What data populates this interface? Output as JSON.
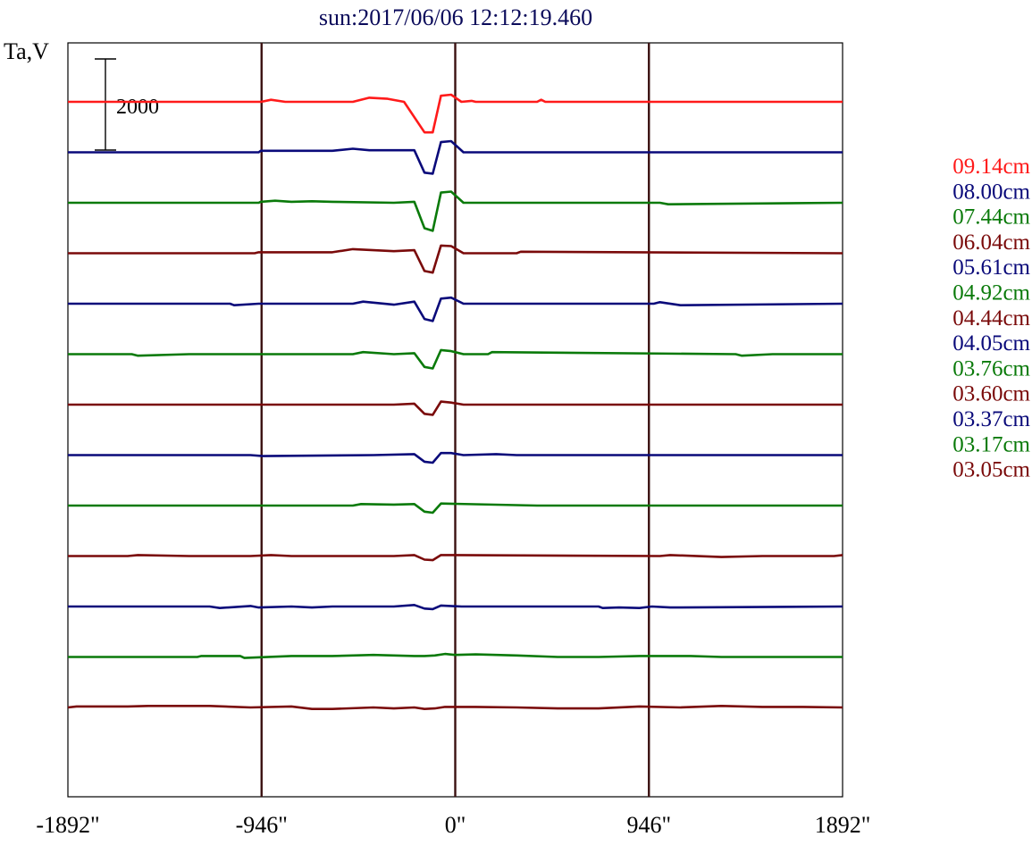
{
  "chart_data": {
    "type": "line",
    "title": "sun:2017/06/06 12:12:19.460",
    "ylabel": "Ta,V",
    "scale_bar_label": "2000",
    "scale_bar_value": 2000,
    "xlim": [
      -1892,
      1892
    ],
    "x_ticks": [
      {
        "value": -1892,
        "label": "-1892\""
      },
      {
        "value": -946,
        "label": "-946\""
      },
      {
        "value": 0,
        "label": "0\""
      },
      {
        "value": 946,
        "label": "946\""
      },
      {
        "value": 1892,
        "label": "1892\""
      }
    ],
    "limb_lines": [
      -946,
      0,
      946
    ],
    "grid": false,
    "legend_position": "right",
    "colors": {
      "red": "#ff1a1a",
      "blue": "#0a0a7a",
      "green": "#0a7a0a",
      "maroon": "#7a0a0a",
      "axis": "#000000",
      "vertical_line": "#3a1010"
    },
    "series": [
      {
        "name": "09.14cm",
        "color": "#ff1a1a",
        "points": [
          [
            -1892,
            0
          ],
          [
            -948,
            0
          ],
          [
            -900,
            40
          ],
          [
            -830,
            0
          ],
          [
            -500,
            0
          ],
          [
            -420,
            80
          ],
          [
            -330,
            60
          ],
          [
            -250,
            0
          ],
          [
            -150,
            -600
          ],
          [
            -110,
            -600
          ],
          [
            -70,
            120
          ],
          [
            -20,
            140
          ],
          [
            30,
            0
          ],
          [
            80,
            20
          ],
          [
            100,
            0
          ],
          [
            400,
            0
          ],
          [
            420,
            40
          ],
          [
            440,
            0
          ],
          [
            1892,
            0
          ]
        ]
      },
      {
        "name": "08.00cm",
        "color": "#0a0a7a",
        "points": [
          [
            -1892,
            0
          ],
          [
            -960,
            0
          ],
          [
            -950,
            30
          ],
          [
            -600,
            30
          ],
          [
            -500,
            70
          ],
          [
            -420,
            40
          ],
          [
            -200,
            40
          ],
          [
            -150,
            -400
          ],
          [
            -110,
            -420
          ],
          [
            -70,
            200
          ],
          [
            -20,
            220
          ],
          [
            40,
            0
          ],
          [
            960,
            0
          ],
          [
            970,
            0
          ],
          [
            1892,
            0
          ]
        ]
      },
      {
        "name": "07.44cm",
        "color": "#0a7a0a",
        "points": [
          [
            -1892,
            0
          ],
          [
            -960,
            0
          ],
          [
            -950,
            20
          ],
          [
            -880,
            40
          ],
          [
            -800,
            20
          ],
          [
            -700,
            30
          ],
          [
            -600,
            20
          ],
          [
            -300,
            0
          ],
          [
            -200,
            20
          ],
          [
            -150,
            -500
          ],
          [
            -110,
            -550
          ],
          [
            -70,
            200
          ],
          [
            -20,
            220
          ],
          [
            40,
            0
          ],
          [
            1000,
            0
          ],
          [
            1040,
            -30
          ],
          [
            1892,
            0
          ]
        ]
      },
      {
        "name": "06.04cm",
        "color": "#7a0a0a",
        "points": [
          [
            -1892,
            0
          ],
          [
            -980,
            0
          ],
          [
            -960,
            20
          ],
          [
            -600,
            20
          ],
          [
            -500,
            80
          ],
          [
            -300,
            40
          ],
          [
            -200,
            60
          ],
          [
            -150,
            -350
          ],
          [
            -110,
            -380
          ],
          [
            -70,
            150
          ],
          [
            -20,
            140
          ],
          [
            40,
            0
          ],
          [
            300,
            0
          ],
          [
            320,
            30
          ],
          [
            1892,
            0
          ]
        ]
      },
      {
        "name": "05.61cm",
        "color": "#0a0a7a",
        "points": [
          [
            -1892,
            0
          ],
          [
            -1100,
            0
          ],
          [
            -1080,
            -30
          ],
          [
            -960,
            0
          ],
          [
            -500,
            0
          ],
          [
            -450,
            40
          ],
          [
            -300,
            -20
          ],
          [
            -200,
            40
          ],
          [
            -150,
            -300
          ],
          [
            -110,
            -340
          ],
          [
            -70,
            100
          ],
          [
            -20,
            120
          ],
          [
            40,
            0
          ],
          [
            970,
            0
          ],
          [
            1000,
            30
          ],
          [
            1100,
            -30
          ],
          [
            1892,
            0
          ]
        ]
      },
      {
        "name": "04.92cm",
        "color": "#0a7a0a",
        "points": [
          [
            -1892,
            0
          ],
          [
            -1580,
            0
          ],
          [
            -1550,
            -30
          ],
          [
            -1300,
            0
          ],
          [
            -500,
            0
          ],
          [
            -450,
            40
          ],
          [
            -300,
            0
          ],
          [
            -200,
            20
          ],
          [
            -150,
            -250
          ],
          [
            -110,
            -280
          ],
          [
            -70,
            80
          ],
          [
            -20,
            60
          ],
          [
            40,
            0
          ],
          [
            160,
            0
          ],
          [
            180,
            40
          ],
          [
            1370,
            0
          ],
          [
            1400,
            -30
          ],
          [
            1550,
            0
          ],
          [
            1892,
            0
          ]
        ]
      },
      {
        "name": "04.44cm",
        "color": "#7a0a0a",
        "points": [
          [
            -1892,
            0
          ],
          [
            -300,
            0
          ],
          [
            -200,
            20
          ],
          [
            -150,
            -180
          ],
          [
            -110,
            -200
          ],
          [
            -70,
            60
          ],
          [
            -20,
            40
          ],
          [
            40,
            0
          ],
          [
            1892,
            0
          ]
        ]
      },
      {
        "name": "04.05cm",
        "color": "#0a0a7a",
        "points": [
          [
            -1892,
            0
          ],
          [
            -1000,
            0
          ],
          [
            -940,
            -20
          ],
          [
            -400,
            0
          ],
          [
            -200,
            20
          ],
          [
            -150,
            -130
          ],
          [
            -110,
            -150
          ],
          [
            -70,
            40
          ],
          [
            -20,
            40
          ],
          [
            40,
            0
          ],
          [
            200,
            20
          ],
          [
            300,
            0
          ],
          [
            1892,
            0
          ]
        ]
      },
      {
        "name": "03.76cm",
        "color": "#0a7a0a",
        "points": [
          [
            -1892,
            0
          ],
          [
            -500,
            0
          ],
          [
            -460,
            30
          ],
          [
            -300,
            20
          ],
          [
            -200,
            30
          ],
          [
            -150,
            -120
          ],
          [
            -110,
            -140
          ],
          [
            -70,
            40
          ],
          [
            400,
            0
          ],
          [
            1892,
            0
          ]
        ]
      },
      {
        "name": "03.60cm",
        "color": "#7a0a0a",
        "points": [
          [
            -1892,
            0
          ],
          [
            -1600,
            0
          ],
          [
            -1550,
            20
          ],
          [
            -1300,
            0
          ],
          [
            -1000,
            0
          ],
          [
            -900,
            20
          ],
          [
            -800,
            0
          ],
          [
            -300,
            0
          ],
          [
            -200,
            20
          ],
          [
            -150,
            -70
          ],
          [
            -110,
            -80
          ],
          [
            -70,
            20
          ],
          [
            1000,
            0
          ],
          [
            1050,
            20
          ],
          [
            1300,
            -20
          ],
          [
            1500,
            0
          ],
          [
            1850,
            0
          ],
          [
            1892,
            20
          ]
        ]
      },
      {
        "name": "03.37cm",
        "color": "#0a0a7a",
        "points": [
          [
            -1892,
            0
          ],
          [
            -1200,
            0
          ],
          [
            -1150,
            -30
          ],
          [
            -1000,
            10
          ],
          [
            -960,
            -20
          ],
          [
            -800,
            0
          ],
          [
            -700,
            -20
          ],
          [
            -600,
            0
          ],
          [
            -300,
            0
          ],
          [
            -200,
            30
          ],
          [
            -150,
            -40
          ],
          [
            -110,
            -50
          ],
          [
            -70,
            20
          ],
          [
            30,
            0
          ],
          [
            700,
            0
          ],
          [
            720,
            -30
          ],
          [
            800,
            -20
          ],
          [
            900,
            -30
          ],
          [
            960,
            0
          ],
          [
            1050,
            -20
          ],
          [
            1892,
            0
          ]
        ]
      },
      {
        "name": "03.17cm",
        "color": "#0a7a0a",
        "points": [
          [
            -1892,
            0
          ],
          [
            -1260,
            0
          ],
          [
            -1240,
            20
          ],
          [
            -1050,
            20
          ],
          [
            -1030,
            -20
          ],
          [
            -800,
            20
          ],
          [
            -600,
            20
          ],
          [
            -400,
            40
          ],
          [
            -200,
            20
          ],
          [
            -150,
            20
          ],
          [
            -100,
            30
          ],
          [
            -50,
            60
          ],
          [
            0,
            40
          ],
          [
            100,
            50
          ],
          [
            300,
            30
          ],
          [
            500,
            0
          ],
          [
            700,
            0
          ],
          [
            900,
            20
          ],
          [
            1150,
            20
          ],
          [
            1300,
            0
          ],
          [
            1892,
            0
          ]
        ]
      },
      {
        "name": "03.05cm",
        "color": "#7a0a0a",
        "points": [
          [
            -1892,
            0
          ],
          [
            -1850,
            20
          ],
          [
            -1600,
            20
          ],
          [
            -1500,
            30
          ],
          [
            -1200,
            30
          ],
          [
            -1000,
            0
          ],
          [
            -800,
            20
          ],
          [
            -700,
            -30
          ],
          [
            -600,
            -30
          ],
          [
            -400,
            0
          ],
          [
            -300,
            -20
          ],
          [
            -200,
            0
          ],
          [
            -150,
            -30
          ],
          [
            -100,
            -20
          ],
          [
            -50,
            10
          ],
          [
            100,
            10
          ],
          [
            300,
            0
          ],
          [
            500,
            -20
          ],
          [
            700,
            -20
          ],
          [
            900,
            20
          ],
          [
            1100,
            0
          ],
          [
            1300,
            30
          ],
          [
            1500,
            10
          ],
          [
            1700,
            10
          ],
          [
            1892,
            0
          ]
        ]
      }
    ]
  }
}
